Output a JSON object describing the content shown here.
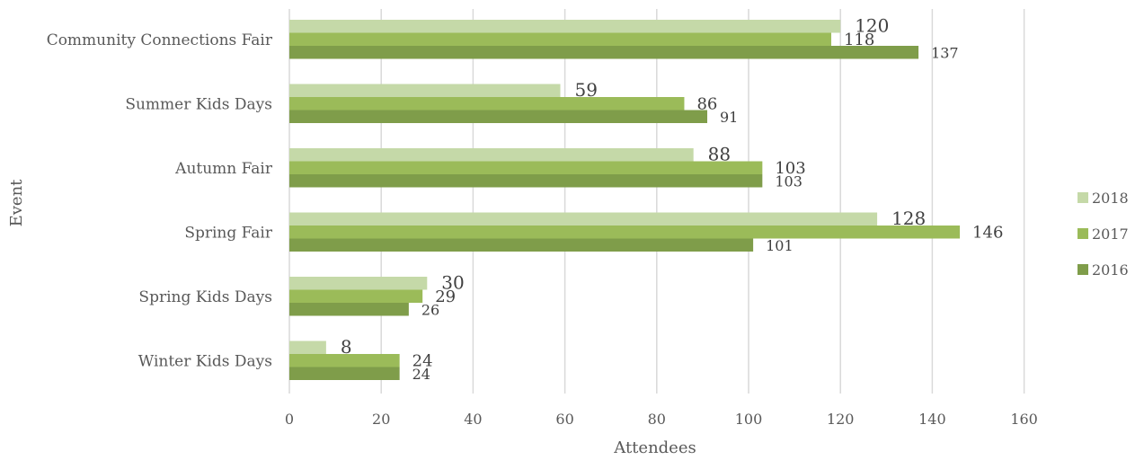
{
  "chart_data": {
    "type": "bar",
    "orientation": "horizontal",
    "title": "",
    "xlabel": "Attendees",
    "ylabel": "Event",
    "xlim": [
      0,
      160
    ],
    "x_ticks": [
      "0",
      "20",
      "40",
      "60",
      "80",
      "100",
      "120",
      "140",
      "160"
    ],
    "grid": true,
    "legend_position": "right",
    "categories": [
      "Community Connections Fair",
      "Summer Kids Days",
      "Autumn Fair",
      "Spring Fair",
      "Spring Kids Days",
      "Winter Kids Days"
    ],
    "series": [
      {
        "name": "2018",
        "color": "#c5d9a8",
        "values": [
          120,
          59,
          88,
          128,
          30,
          8
        ]
      },
      {
        "name": "2017",
        "color": "#9bbb59",
        "values": [
          118,
          86,
          103,
          146,
          29,
          24
        ]
      },
      {
        "name": "2016",
        "color": "#7f9d4a",
        "values": [
          137,
          91,
          103,
          101,
          26,
          24
        ]
      }
    ]
  }
}
